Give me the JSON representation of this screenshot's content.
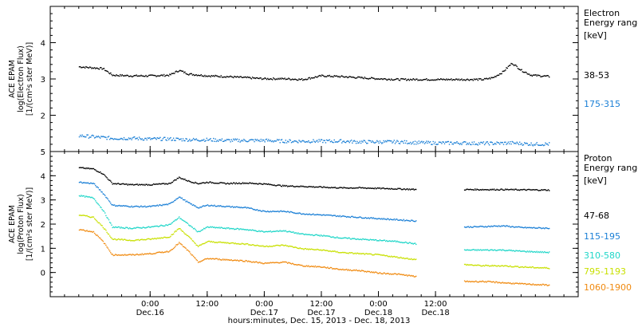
{
  "colors": {
    "black": "#000000",
    "blue": "#1a7fd6",
    "cyan": "#1fd6c8",
    "yellowgreen": "#c8e000",
    "orange": "#f08a10"
  },
  "chart_data": [
    {
      "type": "scatter",
      "panel": "top",
      "ylabel_lines": [
        "ACE EPAM",
        "log(Electron Flux)",
        "[1/(cm²s ster MeV)]"
      ],
      "ylim": [
        1.0,
        5.0
      ],
      "yticks": [
        2,
        3,
        4
      ],
      "legend_title_lines": [
        "Electron",
        "Energy range",
        "[keV]"
      ],
      "series": [
        {
          "name": "38-53",
          "color": "#000000",
          "points": [
            [
              -15,
              3.35
            ],
            [
              -12,
              3.32
            ],
            [
              -10,
              3.3
            ],
            [
              -8,
              3.12
            ],
            [
              -4,
              3.1
            ],
            [
              0,
              3.1
            ],
            [
              4,
              3.12
            ],
            [
              6,
              3.25
            ],
            [
              8,
              3.15
            ],
            [
              12,
              3.1
            ],
            [
              16,
              3.08
            ],
            [
              20,
              3.05
            ],
            [
              24,
              3.02
            ],
            [
              28,
              3.02
            ],
            [
              32,
              3.0
            ],
            [
              34,
              3.05
            ],
            [
              36,
              3.1
            ],
            [
              40,
              3.08
            ],
            [
              44,
              3.05
            ],
            [
              48,
              3.02
            ],
            [
              52,
              3.0
            ],
            [
              56,
              3.0
            ],
            [
              60,
              3.0
            ],
            [
              66,
              3.0
            ],
            [
              68,
              3.0
            ],
            [
              70,
              3.0
            ],
            [
              72,
              3.05
            ],
            [
              74,
              3.2
            ],
            [
              76,
              3.45
            ],
            [
              78,
              3.25
            ],
            [
              80,
              3.12
            ],
            [
              84,
              3.08
            ]
          ]
        },
        {
          "name": "175-315",
          "color": "#1a7fd6",
          "points": [
            [
              -15,
              1.45
            ],
            [
              -12,
              1.42
            ],
            [
              -10,
              1.4
            ],
            [
              -8,
              1.38
            ],
            [
              -4,
              1.38
            ],
            [
              0,
              1.36
            ],
            [
              4,
              1.36
            ],
            [
              8,
              1.34
            ],
            [
              12,
              1.34
            ],
            [
              16,
              1.32
            ],
            [
              20,
              1.32
            ],
            [
              24,
              1.32
            ],
            [
              28,
              1.3
            ],
            [
              32,
              1.3
            ],
            [
              36,
              1.3
            ],
            [
              40,
              1.3
            ],
            [
              44,
              1.28
            ],
            [
              48,
              1.28
            ],
            [
              52,
              1.28
            ],
            [
              56,
              1.26
            ],
            [
              60,
              1.25
            ],
            [
              66,
              1.25
            ],
            [
              68,
              1.24
            ],
            [
              72,
              1.24
            ],
            [
              76,
              1.25
            ],
            [
              80,
              1.22
            ],
            [
              84,
              1.22
            ]
          ]
        }
      ]
    },
    {
      "type": "scatter",
      "panel": "bottom",
      "ylabel_lines": [
        "ACE EPAM",
        "log(Proton Flux)",
        "[1/(cm²s ster MeV)]"
      ],
      "ylim": [
        -1.0,
        5.0
      ],
      "yticks": [
        0,
        1,
        2,
        3,
        4,
        5
      ],
      "legend_title_lines": [
        "Proton",
        "Energy range",
        "[keV]"
      ],
      "series": [
        {
          "name": "47-68",
          "color": "#000000",
          "points": [
            [
              -15,
              4.35
            ],
            [
              -12,
              4.3
            ],
            [
              -10,
              4.1
            ],
            [
              -8,
              3.7
            ],
            [
              -4,
              3.65
            ],
            [
              0,
              3.65
            ],
            [
              4,
              3.7
            ],
            [
              6,
              3.95
            ],
            [
              8,
              3.8
            ],
            [
              10,
              3.7
            ],
            [
              12,
              3.75
            ],
            [
              16,
              3.7
            ],
            [
              20,
              3.72
            ],
            [
              24,
              3.68
            ],
            [
              28,
              3.6
            ],
            [
              32,
              3.58
            ],
            [
              36,
              3.55
            ],
            [
              40,
              3.52
            ],
            [
              44,
              3.52
            ],
            [
              48,
              3.5
            ],
            [
              52,
              3.48
            ],
            [
              56,
              3.45
            ],
            [
              66,
              3.45
            ],
            [
              70,
              3.45
            ],
            [
              74,
              3.45
            ],
            [
              78,
              3.44
            ],
            [
              84,
              3.43
            ]
          ]
        },
        {
          "name": "115-195",
          "color": "#1a7fd6",
          "points": [
            [
              -15,
              3.75
            ],
            [
              -12,
              3.7
            ],
            [
              -10,
              3.3
            ],
            [
              -8,
              2.8
            ],
            [
              -4,
              2.75
            ],
            [
              0,
              2.75
            ],
            [
              4,
              2.85
            ],
            [
              6,
              3.15
            ],
            [
              8,
              2.9
            ],
            [
              10,
              2.7
            ],
            [
              12,
              2.8
            ],
            [
              16,
              2.75
            ],
            [
              20,
              2.7
            ],
            [
              24,
              2.55
            ],
            [
              28,
              2.55
            ],
            [
              32,
              2.45
            ],
            [
              36,
              2.4
            ],
            [
              40,
              2.35
            ],
            [
              44,
              2.3
            ],
            [
              48,
              2.25
            ],
            [
              52,
              2.2
            ],
            [
              56,
              2.15
            ],
            [
              66,
              1.9
            ],
            [
              70,
              1.92
            ],
            [
              74,
              1.95
            ],
            [
              78,
              1.88
            ],
            [
              84,
              1.85
            ]
          ]
        },
        {
          "name": "310-580",
          "color": "#1fd6c8",
          "points": [
            [
              -15,
              3.2
            ],
            [
              -12,
              3.1
            ],
            [
              -10,
              2.6
            ],
            [
              -8,
              1.9
            ],
            [
              -4,
              1.85
            ],
            [
              0,
              1.9
            ],
            [
              4,
              2.0
            ],
            [
              6,
              2.3
            ],
            [
              8,
              2.0
            ],
            [
              10,
              1.7
            ],
            [
              12,
              1.9
            ],
            [
              16,
              1.85
            ],
            [
              20,
              1.8
            ],
            [
              24,
              1.7
            ],
            [
              28,
              1.75
            ],
            [
              32,
              1.6
            ],
            [
              36,
              1.55
            ],
            [
              40,
              1.45
            ],
            [
              44,
              1.4
            ],
            [
              48,
              1.35
            ],
            [
              52,
              1.3
            ],
            [
              56,
              1.2
            ],
            [
              66,
              0.95
            ],
            [
              70,
              0.95
            ],
            [
              74,
              0.95
            ],
            [
              78,
              0.9
            ],
            [
              84,
              0.85
            ]
          ]
        },
        {
          "name": "795-1193",
          "color": "#c8e000",
          "points": [
            [
              -15,
              2.4
            ],
            [
              -12,
              2.3
            ],
            [
              -10,
              1.9
            ],
            [
              -8,
              1.4
            ],
            [
              -4,
              1.35
            ],
            [
              0,
              1.4
            ],
            [
              4,
              1.5
            ],
            [
              6,
              1.85
            ],
            [
              8,
              1.5
            ],
            [
              10,
              1.1
            ],
            [
              12,
              1.3
            ],
            [
              16,
              1.25
            ],
            [
              20,
              1.2
            ],
            [
              24,
              1.1
            ],
            [
              28,
              1.15
            ],
            [
              32,
              1.0
            ],
            [
              36,
              0.95
            ],
            [
              40,
              0.85
            ],
            [
              44,
              0.8
            ],
            [
              48,
              0.75
            ],
            [
              52,
              0.65
            ],
            [
              56,
              0.55
            ],
            [
              66,
              0.35
            ],
            [
              70,
              0.3
            ],
            [
              74,
              0.3
            ],
            [
              78,
              0.25
            ],
            [
              84,
              0.2
            ]
          ]
        },
        {
          "name": "1060-1900",
          "color": "#f08a10",
          "points": [
            [
              -15,
              1.8
            ],
            [
              -12,
              1.7
            ],
            [
              -10,
              1.3
            ],
            [
              -8,
              0.75
            ],
            [
              -4,
              0.75
            ],
            [
              0,
              0.8
            ],
            [
              4,
              0.9
            ],
            [
              6,
              1.25
            ],
            [
              8,
              0.9
            ],
            [
              10,
              0.45
            ],
            [
              12,
              0.6
            ],
            [
              16,
              0.55
            ],
            [
              20,
              0.5
            ],
            [
              24,
              0.4
            ],
            [
              28,
              0.45
            ],
            [
              32,
              0.3
            ],
            [
              36,
              0.25
            ],
            [
              40,
              0.15
            ],
            [
              44,
              0.1
            ],
            [
              48,
              0.0
            ],
            [
              52,
              -0.05
            ],
            [
              56,
              -0.15
            ],
            [
              66,
              -0.35
            ],
            [
              70,
              -0.35
            ],
            [
              74,
              -0.4
            ],
            [
              78,
              -0.45
            ],
            [
              84,
              -0.5
            ]
          ]
        }
      ]
    }
  ],
  "xaxis": {
    "range_hours": [
      -21,
      90
    ],
    "ticks": [
      {
        "h": 0,
        "time": "0:00",
        "date": "Dec.16"
      },
      {
        "h": 12,
        "time": "12:00",
        "date": ""
      },
      {
        "h": 24,
        "time": "0:00",
        "date": "Dec.17"
      },
      {
        "h": 36,
        "time": "12:00",
        "date": "Dec.17"
      },
      {
        "h": 48,
        "time": "0:00",
        "date": "Dec.18"
      },
      {
        "h": 60,
        "time": "12:00",
        "date": "Dec.18"
      }
    ],
    "label": "hours:minutes, Dec. 15, 2013 - Dec. 18, 2013"
  },
  "texts": {
    "x_axis_label": "hours:minutes, Dec. 15, 2013 - Dec. 18, 2013"
  }
}
